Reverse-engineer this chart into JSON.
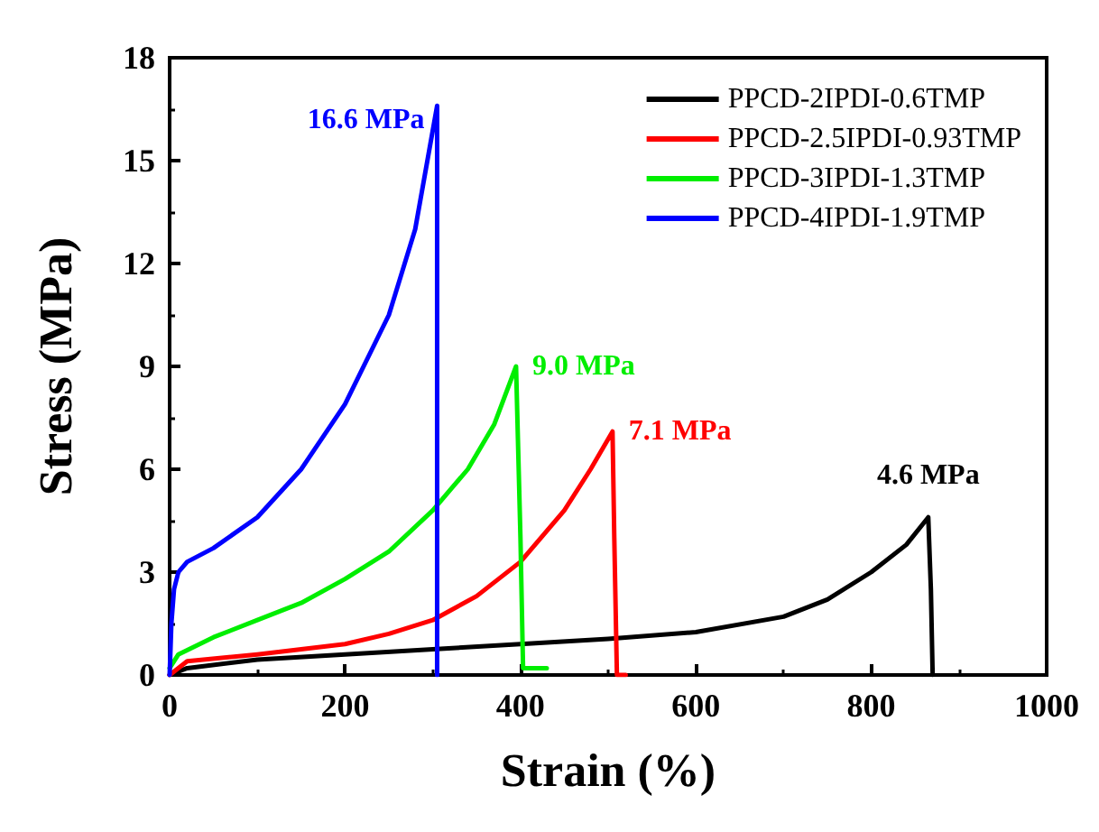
{
  "chart_data": {
    "type": "line",
    "xlabel": "Strain (%)",
    "ylabel": "Stress (MPa)",
    "xlim": [
      0,
      1000
    ],
    "xticks": [
      0,
      200,
      400,
      600,
      800,
      1000
    ],
    "ylim": [
      0,
      18
    ],
    "yticks": [
      0,
      3,
      6,
      9,
      12,
      15,
      18
    ],
    "grid": false,
    "legend": "top right",
    "marker": "none",
    "line_style": "solid",
    "series": [
      {
        "name": "PPCD-2IPDI-0.6TMP",
        "color": "#000000",
        "x": [
          0,
          20,
          100,
          200,
          300,
          400,
          500,
          600,
          700,
          750,
          800,
          840,
          865,
          868,
          870
        ],
        "values": [
          0,
          0.2,
          0.45,
          0.6,
          0.75,
          0.9,
          1.05,
          1.25,
          1.7,
          2.2,
          3.0,
          3.8,
          4.6,
          2.5,
          0
        ]
      },
      {
        "name": "PPCD-2.5IPDI-0.93TMP",
        "color": "#ff0000",
        "x": [
          0,
          20,
          100,
          200,
          250,
          300,
          350,
          400,
          450,
          480,
          505,
          507,
          510,
          520
        ],
        "values": [
          0,
          0.4,
          0.6,
          0.9,
          1.2,
          1.6,
          2.3,
          3.3,
          4.8,
          6.0,
          7.1,
          4.0,
          0,
          0
        ]
      },
      {
        "name": "PPCD-3IPDI-1.3TMP",
        "color": "#00ee00",
        "x": [
          0,
          10,
          50,
          100,
          150,
          200,
          250,
          300,
          340,
          370,
          395,
          400,
          403,
          430
        ],
        "values": [
          0.2,
          0.6,
          1.1,
          1.6,
          2.1,
          2.8,
          3.6,
          4.8,
          6.0,
          7.3,
          9.0,
          4.0,
          0.2,
          0.2
        ]
      },
      {
        "name": "PPCD-4IPDI-1.9TMP",
        "color": "#0000ff",
        "x": [
          0,
          2,
          5,
          10,
          20,
          50,
          100,
          150,
          200,
          250,
          280,
          305,
          305
        ],
        "values": [
          0,
          1.5,
          2.5,
          3.0,
          3.3,
          3.7,
          4.6,
          6.0,
          7.9,
          10.5,
          13.0,
          16.6,
          0
        ]
      }
    ],
    "annotations": [
      {
        "text": "4.6 MPa",
        "x": 865,
        "y": 4.6
      },
      {
        "text": "7.1 MPa",
        "x": 505,
        "y": 7.1
      },
      {
        "text": "9.0 MPa",
        "x": 395,
        "y": 9.0
      },
      {
        "text": "16.6 MPa",
        "x": 305,
        "y": 16.6
      }
    ]
  }
}
